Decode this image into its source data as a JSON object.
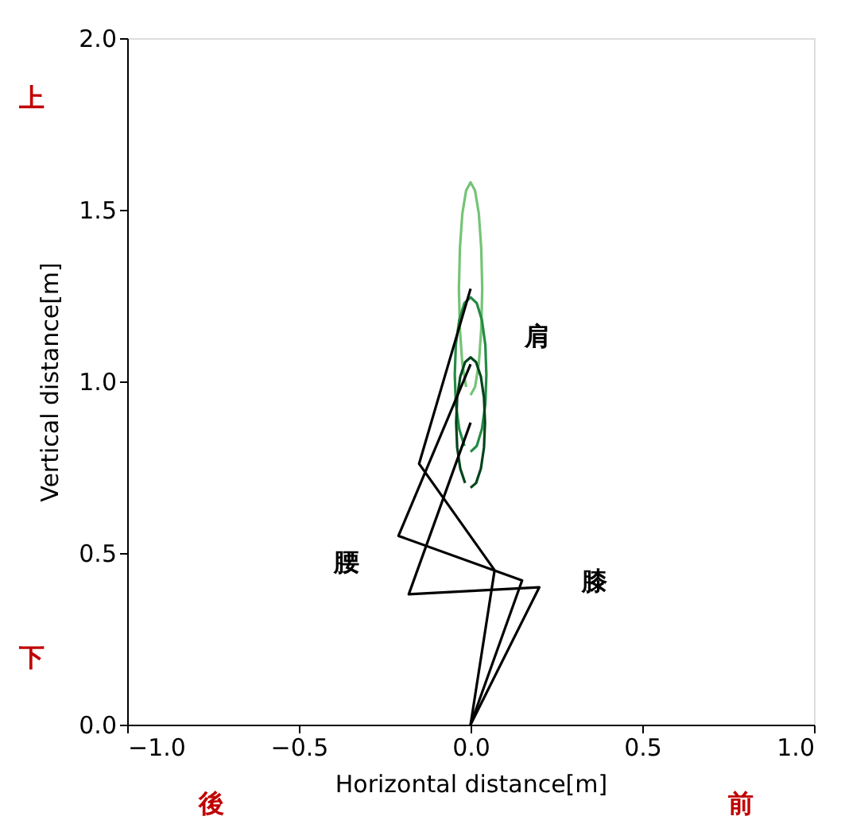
{
  "chart_data": {
    "type": "line",
    "xlabel": "Horizontal distance[m]",
    "ylabel": "Vertical distance[m]",
    "xlim": [
      -1.0,
      1.0
    ],
    "xticks": [
      {
        "value": -1.0,
        "label": "−1.0"
      },
      {
        "value": -0.5,
        "label": "−0.5"
      },
      {
        "value": 0.0,
        "label": "0.0"
      },
      {
        "value": 0.5,
        "label": "0.5"
      },
      {
        "value": 1.0,
        "label": "1.0"
      }
    ],
    "ylim": [
      0.0,
      2.0
    ],
    "yticks": [
      {
        "value": 0.0,
        "label": "0.0"
      },
      {
        "value": 0.5,
        "label": "0.5"
      },
      {
        "value": 1.0,
        "label": "1.0"
      },
      {
        "value": 1.5,
        "label": "1.5"
      },
      {
        "value": 2.0,
        "label": "2.0"
      }
    ],
    "grid": false,
    "legend": false,
    "marker": "none",
    "line_style": "solid",
    "series": [
      {
        "color": "#74c476",
        "x": [
          0,
          0.013,
          0.024,
          0.031,
          0.034,
          0.031,
          0.024,
          0.013,
          0,
          -0.013,
          -0.024,
          -0.031,
          -0.034,
          -0.031,
          -0.024,
          -0.013
        ],
        "values": [
          0.96,
          0.984,
          1.051,
          1.151,
          1.27,
          1.389,
          1.489,
          1.556,
          1.58,
          1.556,
          1.489,
          1.389,
          1.27,
          1.151,
          1.051,
          0.984
        ]
      },
      {
        "color": "#238b45",
        "x": [
          0,
          0.018,
          0.033,
          0.043,
          0.046,
          0.043,
          0.033,
          0.018,
          0,
          -0.018,
          -0.033,
          -0.043,
          -0.046,
          -0.043,
          -0.033,
          -0.018
        ],
        "values": [
          0.795,
          0.812,
          0.861,
          0.934,
          1.02,
          1.106,
          1.179,
          1.228,
          1.245,
          1.228,
          1.179,
          1.106,
          1.02,
          0.934,
          0.861,
          0.812
        ]
      },
      {
        "color": "#00441b",
        "x": [
          0,
          0.016,
          0.03,
          0.039,
          0.042,
          0.039,
          0.03,
          0.016,
          0,
          -0.016,
          -0.03,
          -0.039,
          -0.042,
          -0.039,
          -0.03,
          -0.016
        ],
        "values": [
          0.69,
          0.704,
          0.746,
          0.807,
          0.88,
          0.953,
          1.014,
          1.056,
          1.07,
          1.056,
          1.014,
          0.953,
          0.88,
          0.807,
          0.746,
          0.704
        ]
      },
      {
        "color": "#000000",
        "x": [
          0.0,
          0.07,
          -0.15,
          0.0
        ],
        "values": [
          0.0,
          0.45,
          0.76,
          1.27
        ]
      },
      {
        "color": "#000000",
        "x": [
          0.0,
          0.15,
          -0.21,
          0.0
        ],
        "values": [
          0.0,
          0.42,
          0.55,
          1.05
        ]
      },
      {
        "color": "#000000",
        "x": [
          0.0,
          0.2,
          -0.18,
          0.0
        ],
        "values": [
          0.0,
          0.4,
          0.38,
          0.88
        ]
      }
    ],
    "annotations": [
      "肩",
      "腰",
      "膝",
      "上",
      "下",
      "後",
      "前"
    ]
  }
}
